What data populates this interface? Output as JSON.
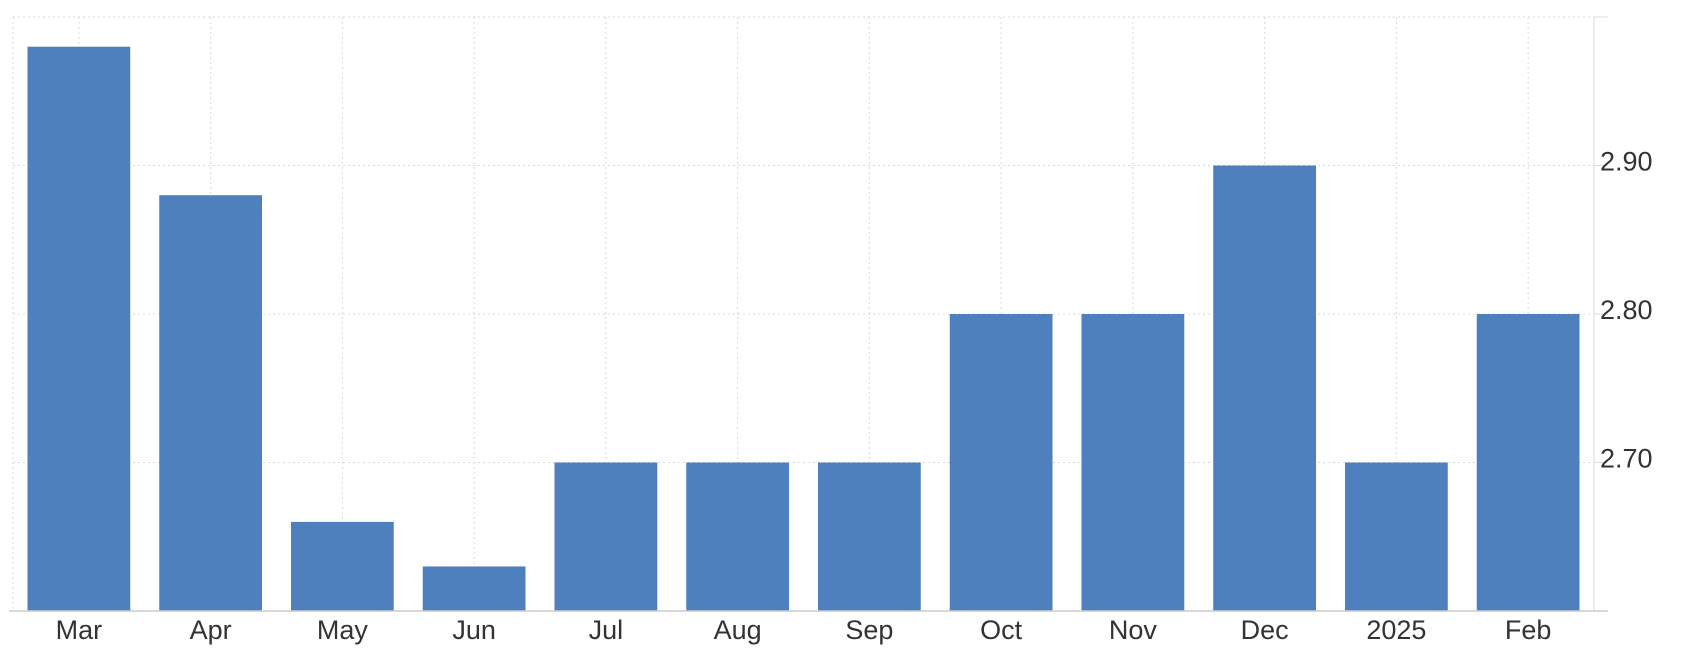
{
  "chart_data": {
    "type": "bar",
    "categories": [
      "Mar",
      "Apr",
      "May",
      "Jun",
      "Jul",
      "Aug",
      "Sep",
      "Oct",
      "Nov",
      "Dec",
      "2025",
      "Feb"
    ],
    "values": [
      2.98,
      2.88,
      2.66,
      2.63,
      2.7,
      2.7,
      2.7,
      2.8,
      2.8,
      2.9,
      2.7,
      2.8
    ],
    "color": "#4e80bd",
    "ylim": [
      2.6,
      3.0
    ],
    "yticks": [
      {
        "value": 2.7,
        "label": "2.70"
      },
      {
        "value": 2.8,
        "label": "2.80"
      },
      {
        "value": 2.9,
        "label": "2.90"
      }
    ],
    "grid": true
  }
}
